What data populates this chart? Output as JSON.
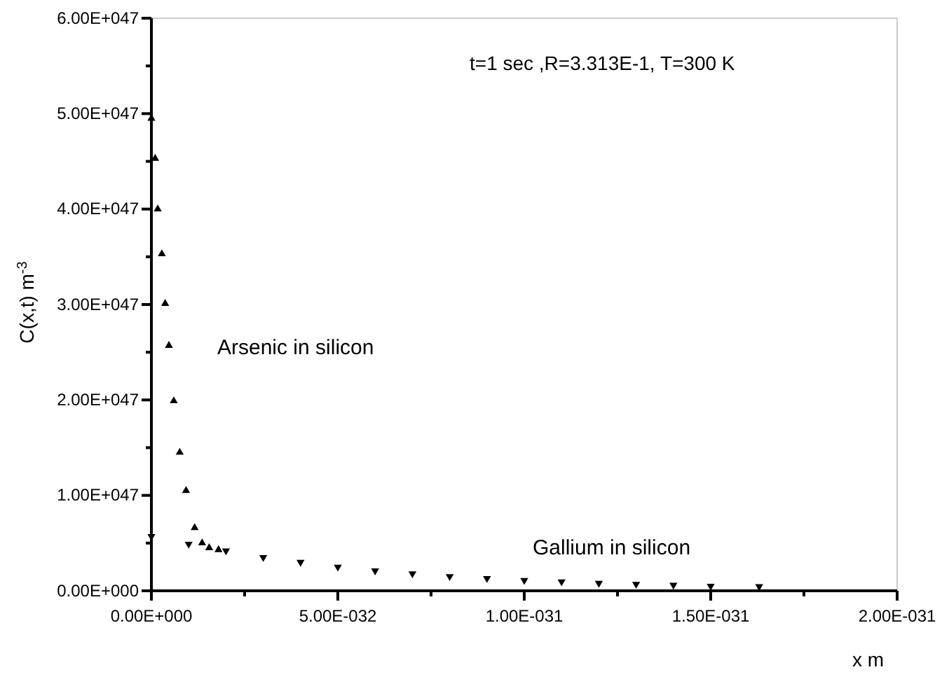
{
  "chart_data": {
    "type": "scatter",
    "xlabel": "x m",
    "ylabel": "C(x,t) m$^{-3}$",
    "annotations": [
      "t=1 sec ,R=3.313E-1,  T=300 K"
    ],
    "marker": "triangle",
    "xlim": [
      0,
      2e-31
    ],
    "xticks": [
      {
        "value": 0,
        "label": "0.00E+000"
      },
      {
        "value": 2.5e-32,
        "label": null
      },
      {
        "value": 5e-32,
        "label": "5.00E-032"
      },
      {
        "value": 7.5e-32,
        "label": null
      },
      {
        "value": 1e-31,
        "label": "1.00E-031"
      },
      {
        "value": 1.25e-31,
        "label": null
      },
      {
        "value": 1.5e-31,
        "label": "1.50E-031"
      },
      {
        "value": 1.75e-31,
        "label": null
      },
      {
        "value": 2e-31,
        "label": "2.00E-031"
      }
    ],
    "ylim": [
      0,
      6e+47
    ],
    "yticks": [
      {
        "value": 0,
        "label": "0.00E+000"
      },
      {
        "value": 5e+46,
        "label": null
      },
      {
        "value": 1e+47,
        "label": "1.00E+047"
      },
      {
        "value": 1.5e+47,
        "label": null
      },
      {
        "value": 2e+47,
        "label": "2.00E+047"
      },
      {
        "value": 2.5e+47,
        "label": null
      },
      {
        "value": 3e+47,
        "label": "3.00E+047"
      },
      {
        "value": 3.5e+47,
        "label": null
      },
      {
        "value": 4e+47,
        "label": "4.00E+047"
      },
      {
        "value": 4.5e+47,
        "label": null
      },
      {
        "value": 5e+47,
        "label": "5.00E+047"
      },
      {
        "value": 5.5e+47,
        "label": null
      },
      {
        "value": 6e+47,
        "label": "6.00E+047"
      }
    ],
    "series": [
      {
        "name": "Arsenic in silicon",
        "color": "#000000",
        "x": [
          0,
          1e-33,
          1.7e-33,
          2.8e-33,
          3.7e-33,
          4.7e-33,
          6e-33,
          7.6e-33,
          9.3e-33,
          1.16e-32,
          1.36e-32,
          1.55e-32,
          1.8e-32
        ],
        "values": [
          4.95e+47,
          4.53e+47,
          4e+47,
          3.53e+47,
          3.01e+47,
          2.57e+47,
          1.99e+47,
          1.45e+47,
          1.05e+47,
          6.6e+46,
          5e+46,
          4.5e+46,
          4.3e+46
        ]
      },
      {
        "name": "Gallium in silicon",
        "color": "#000000",
        "marker": "triangle-down",
        "x": [
          0,
          1e-32,
          2e-32,
          3e-32,
          4e-32,
          5e-32,
          6e-32,
          7e-32,
          8e-32,
          9e-32,
          1e-31,
          1.1e-31,
          1.2e-31,
          1.3e-31,
          1.4e-31,
          1.5e-31,
          1.63e-31
        ],
        "values": [
          5.7e+46,
          4.9e+46,
          4.2e+46,
          3.5e+46,
          3e+46,
          2.5e+46,
          2.1e+46,
          1.8e+46,
          1.5e+46,
          1.3e+46,
          1.1e+46,
          9.5e+45,
          8e+45,
          7e+45,
          6e+45,
          5e+45,
          4.5e+45
        ]
      }
    ]
  }
}
